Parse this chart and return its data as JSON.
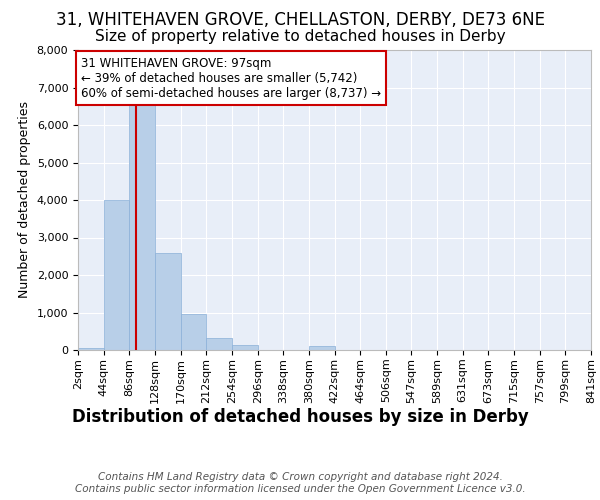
{
  "title1": "31, WHITEHAVEN GROVE, CHELLASTON, DERBY, DE73 6NE",
  "title2": "Size of property relative to detached houses in Derby",
  "xlabel": "Distribution of detached houses by size in Derby",
  "ylabel": "Number of detached properties",
  "bin_edges": [
    2,
    44,
    86,
    128,
    170,
    212,
    254,
    296,
    338,
    380,
    422,
    464,
    506,
    547,
    589,
    631,
    673,
    715,
    757,
    799,
    841
  ],
  "bar_heights": [
    50,
    4000,
    6600,
    2600,
    950,
    325,
    125,
    0,
    0,
    100,
    0,
    0,
    0,
    0,
    0,
    0,
    0,
    0,
    0,
    0
  ],
  "bar_color": "#b8cfe8",
  "bar_edgecolor": "#8ab0d8",
  "property_size": 97,
  "property_line_color": "#cc0000",
  "annotation_line1": "31 WHITEHAVEN GROVE: 97sqm",
  "annotation_line2": "← 39% of detached houses are smaller (5,742)",
  "annotation_line3": "60% of semi-detached houses are larger (8,737) →",
  "annotation_box_edgecolor": "#cc0000",
  "bg_color": "#e8eef8",
  "grid_color": "#d0d8e8",
  "footer_text": "Contains HM Land Registry data © Crown copyright and database right 2024.\nContains public sector information licensed under the Open Government Licence v3.0.",
  "ylim": [
    0,
    8000
  ],
  "title1_fontsize": 12,
  "title2_fontsize": 11,
  "xlabel_fontsize": 12,
  "ylabel_fontsize": 9,
  "tick_fontsize": 8,
  "footer_fontsize": 7.5
}
